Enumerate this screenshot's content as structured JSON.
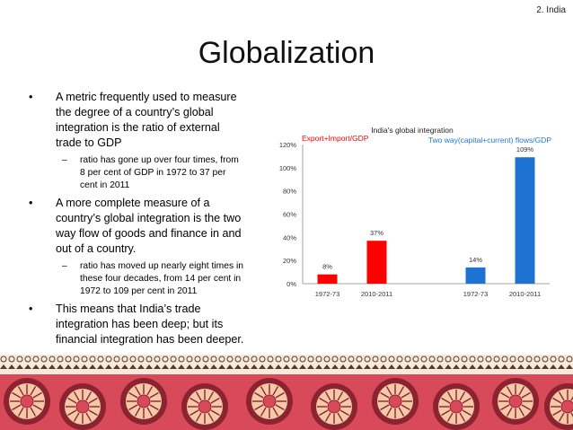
{
  "slide": {
    "tag": "2. India",
    "title": "Globalization"
  },
  "bullets": [
    {
      "text": "A metric frequently used to measure the degree of a country’s global integration is the ratio of external trade to GDP",
      "sub": [
        "ratio has gone up over four times, from 8 per cent of GDP in 1972 to 37 per cent in 2011"
      ]
    },
    {
      "text": "A more complete measure of a country’s global integration is the two way flow of goods and finance in and out of a country.",
      "sub": [
        "ratio has moved up nearly eight times in these four decades, from 14 per cent in 1972 to 109 per cent in 2011"
      ]
    },
    {
      "text": "This means that India’s trade integration has been deep; but its financial integration has been deeper.",
      "sub": []
    }
  ],
  "chart_data": {
    "type": "bar",
    "title": "India's global integration",
    "group_labels": [
      {
        "text": "Export+Import/GDP",
        "color": "#ff0000"
      },
      {
        "text": "Two way(capital+current) flows/GDP",
        "color": "#1f78d1"
      }
    ],
    "categories": [
      "1972-73",
      "2010-2011",
      "1972-73",
      "2010-2011"
    ],
    "values": [
      8,
      37,
      14,
      109
    ],
    "data_labels": [
      "8%",
      "37%",
      "14%",
      "109%"
    ],
    "colors": [
      "#ff0000",
      "#ff0000",
      "#1e73d2",
      "#1e73d2"
    ],
    "ylim": [
      0,
      120
    ],
    "yticks": [
      "0%",
      "20%",
      "40%",
      "60%",
      "80%",
      "100%",
      "120%"
    ],
    "grid": false,
    "legend": "none"
  },
  "banner": {
    "colors": {
      "bg": "#d8495a",
      "dark": "#8c2330",
      "light": "#f3c9a8",
      "cream": "#f6ead8",
      "brown": "#5a3a2a"
    }
  }
}
